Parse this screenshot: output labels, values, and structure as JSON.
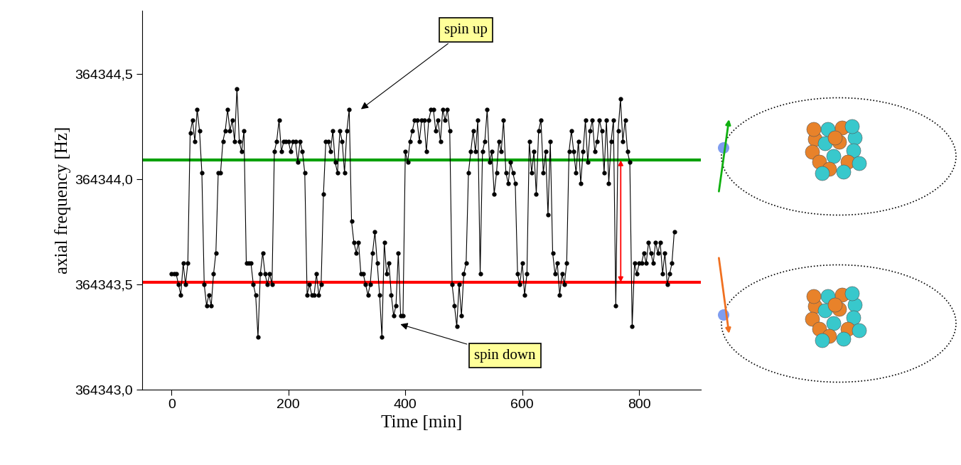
{
  "chart_data": {
    "type": "line",
    "x_label": "Time [min]",
    "y_label": "axial frequency [Hz]",
    "xlim": [
      -50,
      905
    ],
    "xticks": [
      0,
      200,
      400,
      600,
      800
    ],
    "ylim": [
      364343.0,
      364344.8
    ],
    "yticks": [
      {
        "value": 364343.0,
        "label": "364343,0"
      },
      {
        "value": 364343.5,
        "label": "364343,5"
      },
      {
        "value": 364344.0,
        "label": "364344,0"
      },
      {
        "value": 364344.5,
        "label": "364344,5"
      }
    ],
    "grid": false,
    "x": [
      0,
      4,
      8,
      12,
      16,
      20,
      24,
      28,
      32,
      36,
      40,
      44,
      48,
      52,
      56,
      60,
      64,
      68,
      72,
      76,
      80,
      84,
      88,
      92,
      96,
      100,
      104,
      108,
      112,
      116,
      120,
      124,
      128,
      132,
      136,
      140,
      144,
      148,
      152,
      156,
      160,
      164,
      168,
      172,
      176,
      180,
      184,
      188,
      192,
      196,
      200,
      204,
      208,
      212,
      216,
      220,
      224,
      228,
      232,
      236,
      240,
      244,
      248,
      252,
      256,
      260,
      264,
      268,
      272,
      276,
      280,
      284,
      288,
      292,
      296,
      300,
      304,
      308,
      312,
      316,
      320,
      324,
      328,
      332,
      336,
      340,
      344,
      348,
      352,
      356,
      360,
      364,
      368,
      372,
      376,
      380,
      384,
      388,
      392,
      396,
      400,
      404,
      408,
      412,
      416,
      420,
      424,
      428,
      432,
      436,
      440,
      444,
      448,
      452,
      456,
      460,
      464,
      468,
      472,
      476,
      480,
      484,
      488,
      492,
      496,
      500,
      504,
      508,
      512,
      516,
      520,
      524,
      528,
      532,
      536,
      540,
      544,
      548,
      552,
      556,
      560,
      564,
      568,
      572,
      576,
      580,
      584,
      588,
      592,
      596,
      600,
      604,
      608,
      612,
      616,
      620,
      624,
      628,
      632,
      636,
      640,
      644,
      648,
      652,
      656,
      660,
      664,
      668,
      672,
      676,
      680,
      684,
      688,
      692,
      696,
      700,
      704,
      708,
      712,
      716,
      720,
      724,
      728,
      732,
      736,
      740,
      744,
      748,
      752,
      756,
      760,
      764,
      768,
      772,
      776,
      780,
      784,
      788,
      792,
      796,
      800,
      804,
      808,
      812,
      816,
      820,
      824,
      828,
      832,
      836,
      840,
      844,
      848,
      852,
      856,
      860
    ],
    "series": [
      {
        "color": "#000000",
        "marker": "o",
        "line_style": "solid",
        "values": [
          364343.55,
          364343.55,
          364343.55,
          364343.5,
          364343.45,
          364343.6,
          364343.5,
          364343.6,
          364344.22,
          364344.28,
          364344.18,
          364344.33,
          364344.23,
          364344.03,
          364343.5,
          364343.4,
          364343.45,
          364343.4,
          364343.55,
          364343.65,
          364344.03,
          364344.03,
          364344.18,
          364344.23,
          364344.33,
          364344.23,
          364344.28,
          364344.18,
          364344.43,
          364344.18,
          364344.13,
          364344.23,
          364343.6,
          364343.6,
          364343.6,
          364343.5,
          364343.45,
          364343.25,
          364343.55,
          364343.65,
          364343.55,
          364343.5,
          364343.55,
          364343.5,
          364344.13,
          364344.18,
          364344.28,
          364344.13,
          364344.18,
          364344.18,
          364344.18,
          364344.13,
          364344.18,
          364344.18,
          364344.08,
          364344.18,
          364344.13,
          364344.03,
          364343.45,
          364343.5,
          364343.45,
          364343.45,
          364343.55,
          364343.45,
          364343.5,
          364343.93,
          364344.18,
          364344.18,
          364344.13,
          364344.23,
          364344.08,
          364344.03,
          364344.23,
          364344.18,
          364344.03,
          364344.23,
          364344.33,
          364343.8,
          364343.7,
          364343.65,
          364343.7,
          364343.55,
          364343.55,
          364343.5,
          364343.45,
          364343.5,
          364343.65,
          364343.75,
          364343.6,
          364343.45,
          364343.25,
          364343.7,
          364343.55,
          364343.6,
          364343.45,
          364343.35,
          364343.4,
          364343.65,
          364343.35,
          364343.35,
          364344.13,
          364344.08,
          364344.18,
          364344.23,
          364344.28,
          364344.28,
          364344.18,
          364344.28,
          364344.28,
          364344.13,
          364344.28,
          364344.33,
          364344.33,
          364344.23,
          364344.28,
          364344.18,
          364344.33,
          364344.28,
          364344.33,
          364344.23,
          364343.5,
          364343.4,
          364343.3,
          364343.5,
          364343.35,
          364343.55,
          364343.6,
          364344.03,
          364344.13,
          364344.23,
          364344.13,
          364344.28,
          364343.55,
          364344.13,
          364344.18,
          364344.33,
          364344.08,
          364344.13,
          364343.93,
          364344.03,
          364344.18,
          364344.13,
          364344.28,
          364344.03,
          364343.98,
          364344.08,
          364344.03,
          364343.98,
          364343.55,
          364343.5,
          364343.6,
          364343.45,
          364343.55,
          364344.18,
          364344.03,
          364344.13,
          364343.93,
          364344.23,
          364344.28,
          364344.03,
          364344.13,
          364343.83,
          364344.18,
          364343.65,
          364343.55,
          364343.6,
          364343.45,
          364343.55,
          364343.5,
          364343.6,
          364344.13,
          364344.23,
          364344.13,
          364344.03,
          364344.18,
          364343.98,
          364344.13,
          364344.28,
          364344.08,
          364344.23,
          364344.28,
          364344.13,
          364344.18,
          364344.28,
          364344.23,
          364344.03,
          364344.28,
          364343.98,
          364344.18,
          364344.28,
          364343.4,
          364344.23,
          364344.38,
          364344.18,
          364344.28,
          364344.13,
          364344.08,
          364343.3,
          364343.6,
          364343.55,
          364343.6,
          364343.6,
          364343.65,
          364343.6,
          364343.7,
          364343.65,
          364343.6,
          364343.7,
          364343.65,
          364343.7,
          364343.55,
          364343.65,
          364343.5,
          364343.55,
          364343.6,
          364343.75
        ]
      }
    ],
    "reference_lines": [
      {
        "value": 364344.09,
        "color": "#00a000"
      },
      {
        "value": 364343.51,
        "color": "#ff0000"
      }
    ],
    "annotations": [
      {
        "text": "spin up"
      },
      {
        "text": "spin down"
      }
    ]
  }
}
